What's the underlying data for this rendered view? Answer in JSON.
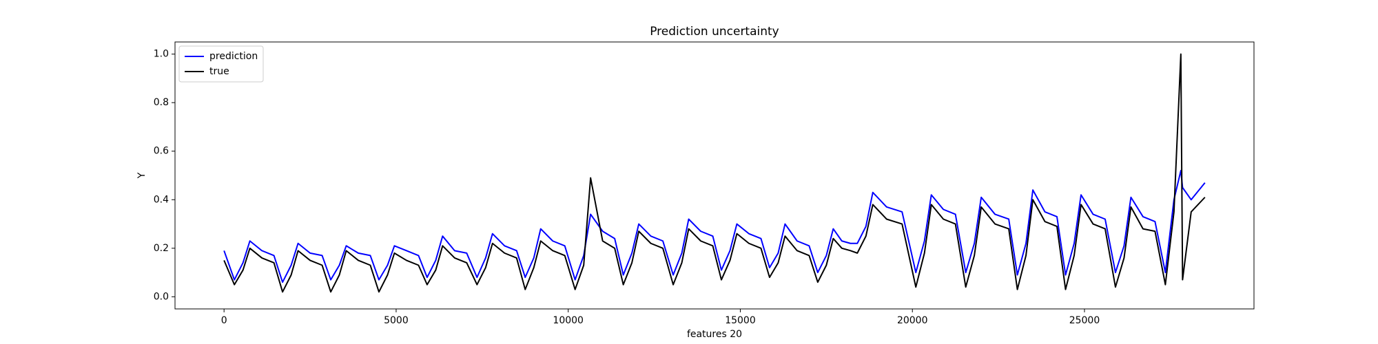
{
  "chart_data": {
    "type": "line",
    "title": "Prediction uncertainty",
    "x_label": "features 20",
    "y_label": "Y",
    "x": [
      0,
      300,
      550,
      750,
      1100,
      1450,
      1700,
      1950,
      2150,
      2500,
      2850,
      3100,
      3350,
      3550,
      3900,
      4250,
      4500,
      4750,
      4950,
      5300,
      5650,
      5900,
      6150,
      6350,
      6700,
      7050,
      7350,
      7600,
      7800,
      8150,
      8500,
      8750,
      9000,
      9200,
      9550,
      9900,
      10200,
      10450,
      10650,
      11000,
      11350,
      11600,
      11850,
      12050,
      12400,
      12750,
      13050,
      13300,
      13500,
      13850,
      14200,
      14450,
      14700,
      14900,
      15250,
      15600,
      15850,
      16100,
      16300,
      16650,
      17000,
      17250,
      17500,
      17700,
      17950,
      18200,
      18400,
      18650,
      18850,
      19250,
      19700,
      20100,
      20350,
      20550,
      20900,
      21250,
      21550,
      21800,
      22000,
      22400,
      22800,
      23050,
      23300,
      23500,
      23850,
      24200,
      24450,
      24700,
      24900,
      25250,
      25600,
      25900,
      26150,
      26350,
      26700,
      27050,
      27350,
      27600,
      27800,
      27850,
      28100,
      28500
    ],
    "series": [
      {
        "name": "prediction",
        "color": "#0000ff",
        "values": [
          0.19,
          0.07,
          0.14,
          0.23,
          0.19,
          0.17,
          0.06,
          0.13,
          0.22,
          0.18,
          0.17,
          0.07,
          0.13,
          0.21,
          0.18,
          0.17,
          0.07,
          0.13,
          0.21,
          0.19,
          0.17,
          0.08,
          0.15,
          0.25,
          0.19,
          0.18,
          0.08,
          0.16,
          0.26,
          0.21,
          0.19,
          0.08,
          0.16,
          0.28,
          0.23,
          0.21,
          0.07,
          0.17,
          0.34,
          0.27,
          0.24,
          0.09,
          0.18,
          0.3,
          0.25,
          0.23,
          0.09,
          0.18,
          0.32,
          0.27,
          0.25,
          0.11,
          0.19,
          0.3,
          0.26,
          0.24,
          0.12,
          0.18,
          0.3,
          0.23,
          0.21,
          0.1,
          0.17,
          0.28,
          0.23,
          0.22,
          0.22,
          0.29,
          0.43,
          0.37,
          0.35,
          0.1,
          0.23,
          0.42,
          0.36,
          0.34,
          0.1,
          0.22,
          0.41,
          0.34,
          0.32,
          0.09,
          0.22,
          0.44,
          0.35,
          0.33,
          0.09,
          0.22,
          0.42,
          0.34,
          0.32,
          0.1,
          0.21,
          0.41,
          0.33,
          0.31,
          0.1,
          0.4,
          0.52,
          0.45,
          0.4,
          0.47
        ]
      },
      {
        "name": "true",
        "color": "#000000",
        "values": [
          0.15,
          0.05,
          0.11,
          0.2,
          0.16,
          0.14,
          0.02,
          0.09,
          0.19,
          0.15,
          0.13,
          0.02,
          0.09,
          0.19,
          0.15,
          0.13,
          0.02,
          0.09,
          0.18,
          0.15,
          0.13,
          0.05,
          0.11,
          0.21,
          0.16,
          0.14,
          0.05,
          0.12,
          0.22,
          0.18,
          0.16,
          0.03,
          0.12,
          0.23,
          0.19,
          0.17,
          0.03,
          0.13,
          0.49,
          0.23,
          0.2,
          0.05,
          0.14,
          0.27,
          0.22,
          0.2,
          0.05,
          0.14,
          0.28,
          0.23,
          0.21,
          0.07,
          0.15,
          0.26,
          0.22,
          0.2,
          0.08,
          0.14,
          0.25,
          0.19,
          0.17,
          0.06,
          0.13,
          0.24,
          0.2,
          0.19,
          0.18,
          0.25,
          0.38,
          0.32,
          0.3,
          0.04,
          0.18,
          0.38,
          0.32,
          0.3,
          0.04,
          0.17,
          0.37,
          0.3,
          0.28,
          0.03,
          0.17,
          0.4,
          0.31,
          0.29,
          0.03,
          0.17,
          0.38,
          0.3,
          0.28,
          0.04,
          0.16,
          0.37,
          0.28,
          0.27,
          0.05,
          0.35,
          1.0,
          0.07,
          0.35,
          0.41
        ]
      }
    ],
    "xlim": [
      -1425,
      29925
    ],
    "xticks": [
      0,
      5000,
      10000,
      15000,
      20000,
      25000
    ],
    "ylim": [
      -0.05,
      1.05
    ],
    "yticks": [
      {
        "value": 0,
        "label": "0.0"
      },
      {
        "value": 0.2,
        "label": "0.2"
      },
      {
        "value": 0.4,
        "label": "0.4"
      },
      {
        "value": 0.6,
        "label": "0.6"
      },
      {
        "value": 0.8,
        "label": "0.8"
      },
      {
        "value": 1,
        "label": "1.0"
      }
    ],
    "legend": "upper left",
    "grid": false
  }
}
